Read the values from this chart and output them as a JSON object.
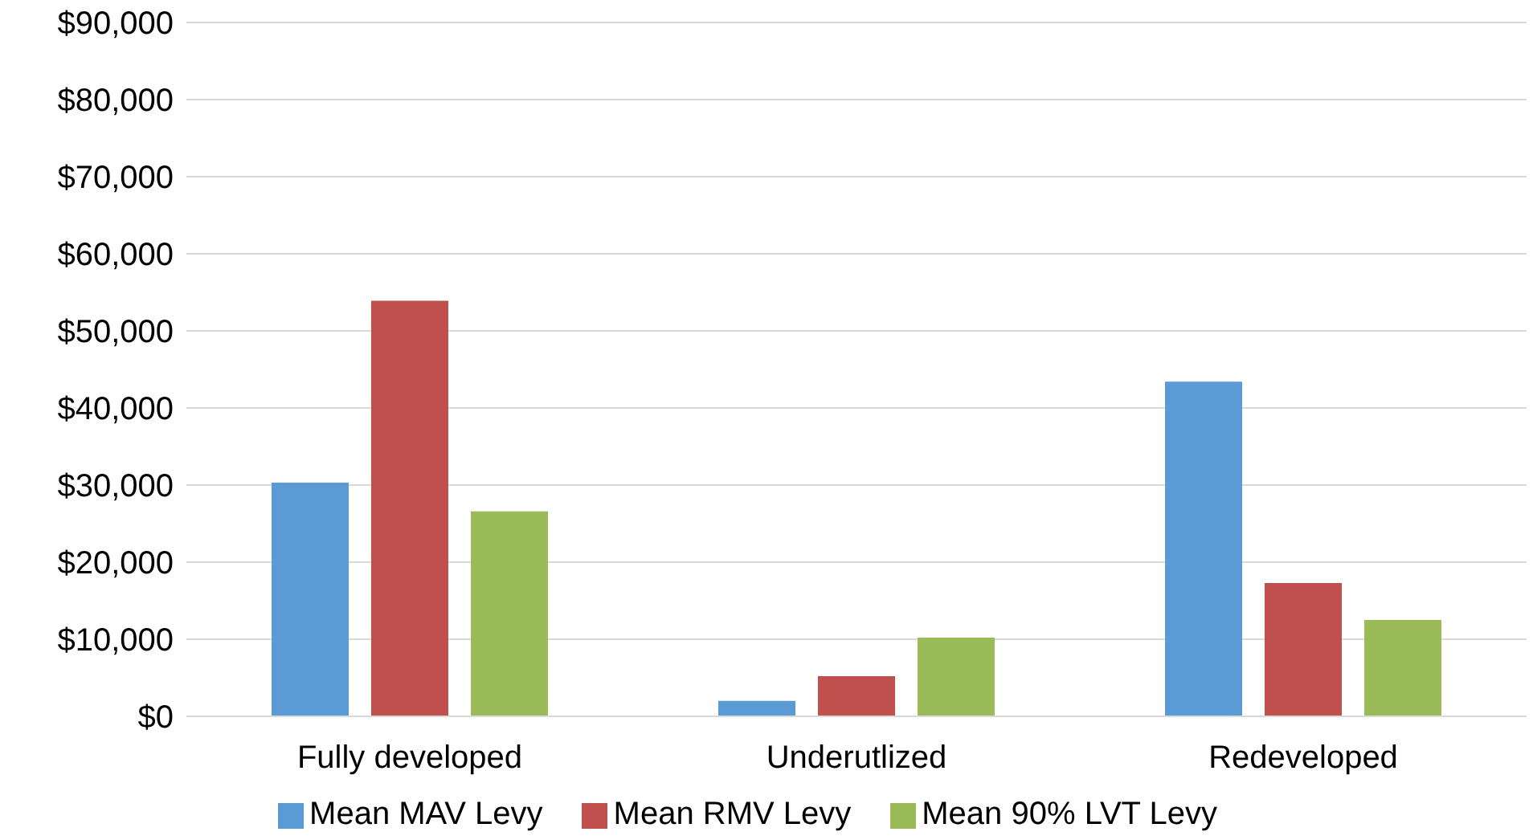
{
  "chart_data": {
    "type": "bar",
    "categories": [
      "Fully developed",
      "Underutlized",
      "Redeveloped"
    ],
    "series": [
      {
        "name": "Mean MAV Levy",
        "color": "#5b9bd5",
        "values": [
          30300,
          2000,
          43400
        ]
      },
      {
        "name": "Mean RMV Levy",
        "color": "#c0504d",
        "values": [
          53900,
          5200,
          17300
        ]
      },
      {
        "name": "Mean 90% LVT Levy",
        "color": "#9bbb59",
        "values": [
          26600,
          10200,
          12500
        ]
      }
    ],
    "ylim": [
      0,
      90000
    ],
    "yticks": [
      {
        "value": 0,
        "label": "$0"
      },
      {
        "value": 10000,
        "label": "$10,000"
      },
      {
        "value": 20000,
        "label": "$20,000"
      },
      {
        "value": 30000,
        "label": "$30,000"
      },
      {
        "value": 40000,
        "label": "$40,000"
      },
      {
        "value": 50000,
        "label": "$50,000"
      },
      {
        "value": 60000,
        "label": "$60,000"
      },
      {
        "value": 70000,
        "label": "$70,000"
      },
      {
        "value": 80000,
        "label": "$80,000"
      },
      {
        "value": 90000,
        "label": "$90,000"
      }
    ],
    "grid": "y",
    "legend": "bottom"
  }
}
